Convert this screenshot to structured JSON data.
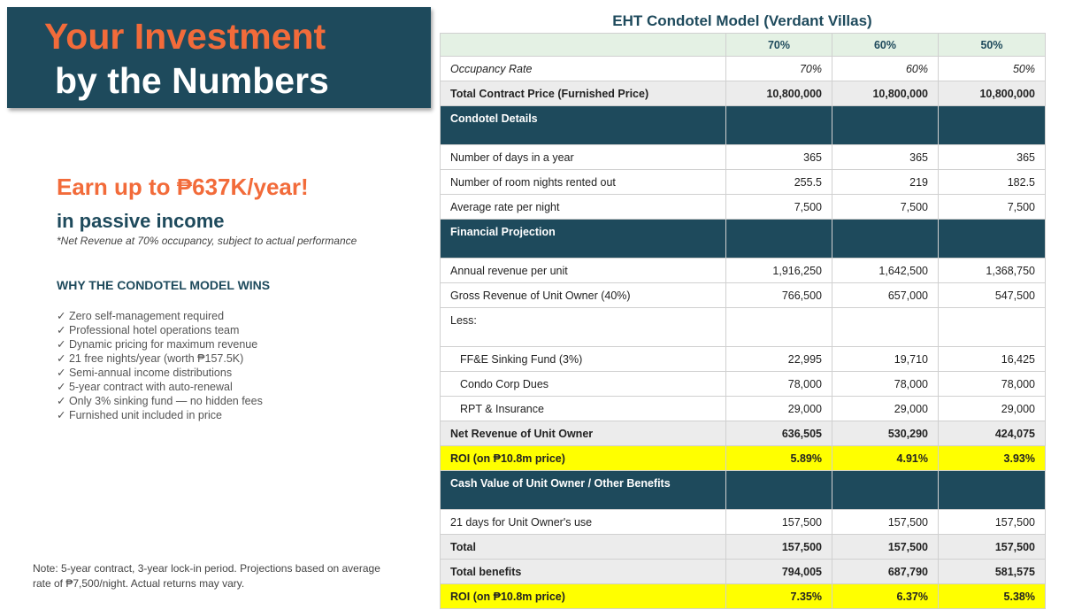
{
  "header": {
    "title_line1": "Your Investment",
    "title_line2": "by the Numbers"
  },
  "headline": "Earn up to ₱637K/year!",
  "subheadline": "in passive income",
  "footnote": "*Net Revenue at 70% occupancy, subject to actual performance",
  "benefits": {
    "title": "WHY THE CONDOTEL MODEL WINS",
    "items": [
      "✓ Zero self-management required",
      "✓ Professional hotel operations team",
      "✓ Dynamic pricing for maximum revenue",
      "✓ 21 free nights/year (worth ₱157.5K)",
      "✓ Semi-annual income distributions",
      "✓ 5-year contract with auto-renewal",
      "✓ Only 3% sinking fund — no hidden fees",
      "✓ Furnished unit included in price"
    ]
  },
  "note": "Note: 5-year contract, 3-year lock-in period. Projections based on average rate of ₱7,500/night. Actual returns may vary.",
  "table": {
    "title": "EHT Condotel Model (Verdant Villas)",
    "columns": [
      "70%",
      "60%",
      "50%"
    ],
    "rows": [
      {
        "label": "Occupancy Rate",
        "style": "italic",
        "values": [
          "70%",
          "60%",
          "50%"
        ]
      },
      {
        "label": "Total Contract Price (Furnished Price)",
        "style": "bold",
        "values": [
          "10,800,000",
          "10,800,000",
          "10,800,000"
        ]
      },
      {
        "label": "Condotel Details",
        "style": "section"
      },
      {
        "label": "Number of days in a year",
        "style": "normal",
        "values": [
          "365",
          "365",
          "365"
        ]
      },
      {
        "label": "Number of room nights rented out",
        "style": "normal",
        "values": [
          "255.5",
          "219",
          "182.5"
        ]
      },
      {
        "label": "Average rate per night",
        "style": "normal",
        "values": [
          "7,500",
          "7,500",
          "7,500"
        ]
      },
      {
        "label": "Financial Projection",
        "style": "section"
      },
      {
        "label": "Annual revenue per unit",
        "style": "normal",
        "values": [
          "1,916,250",
          "1,642,500",
          "1,368,750"
        ]
      },
      {
        "label": "Gross Revenue of Unit Owner (40%)",
        "style": "normal",
        "values": [
          "766,500",
          "657,000",
          "547,500"
        ]
      },
      {
        "label": "Less:",
        "style": "tall"
      },
      {
        "label": "FF&E Sinking Fund (3%)",
        "style": "indent",
        "values": [
          "22,995",
          "19,710",
          "16,425"
        ]
      },
      {
        "label": "Condo Corp Dues",
        "style": "indent",
        "values": [
          "78,000",
          "78,000",
          "78,000"
        ]
      },
      {
        "label": "RPT & Insurance",
        "style": "indent",
        "values": [
          "29,000",
          "29,000",
          "29,000"
        ]
      },
      {
        "label": "Net Revenue of Unit Owner",
        "style": "bold",
        "values": [
          "636,505",
          "530,290",
          "424,075"
        ]
      },
      {
        "label": "ROI (on ₱10.8m price)",
        "style": "highlight",
        "values": [
          "5.89%",
          "4.91%",
          "3.93%"
        ]
      },
      {
        "label": "Cash Value of Unit Owner / Other Benefits",
        "style": "section"
      },
      {
        "label": "21 days for Unit Owner's use",
        "style": "normal",
        "values": [
          "157,500",
          "157,500",
          "157,500"
        ]
      },
      {
        "label": "Total",
        "style": "bold",
        "values": [
          "157,500",
          "157,500",
          "157,500"
        ]
      },
      {
        "label": "Total benefits",
        "style": "bold",
        "values": [
          "794,005",
          "687,790",
          "581,575"
        ]
      },
      {
        "label": "ROI (on ₱10.8m price)",
        "style": "highlight",
        "values": [
          "7.35%",
          "6.37%",
          "5.38%"
        ]
      }
    ]
  }
}
